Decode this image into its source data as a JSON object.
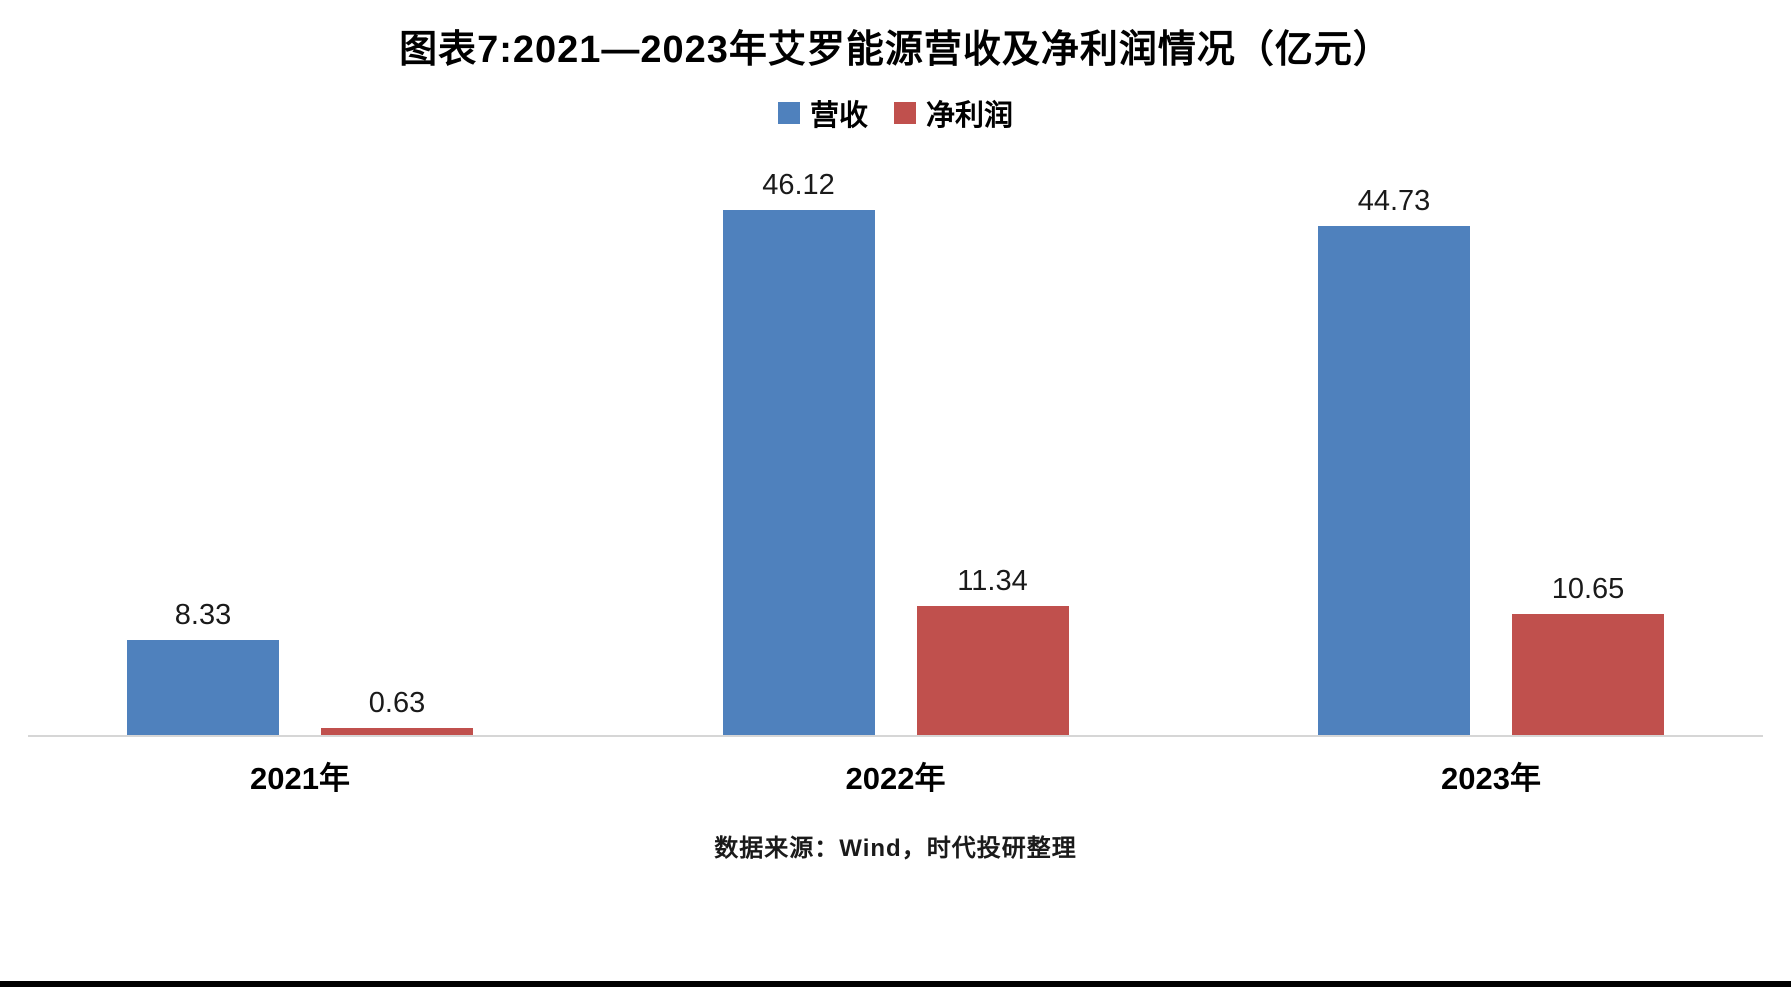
{
  "chart_data": {
    "type": "bar",
    "title": "图表7:2021—2023年艾罗能源营收及净利润情况（亿元）",
    "categories": [
      "2021年",
      "2022年",
      "2023年"
    ],
    "series": [
      {
        "name": "营收",
        "color": "#4F81BD",
        "values": [
          8.33,
          46.12,
          44.73
        ]
      },
      {
        "name": "净利润",
        "color": "#C0504D",
        "values": [
          0.63,
          11.34,
          10.65
        ]
      }
    ],
    "ylim": [
      0,
      50
    ],
    "grid": false,
    "legend_position": "top",
    "value_decimals": 2,
    "source": "数据来源：Wind，时代投研整理"
  }
}
